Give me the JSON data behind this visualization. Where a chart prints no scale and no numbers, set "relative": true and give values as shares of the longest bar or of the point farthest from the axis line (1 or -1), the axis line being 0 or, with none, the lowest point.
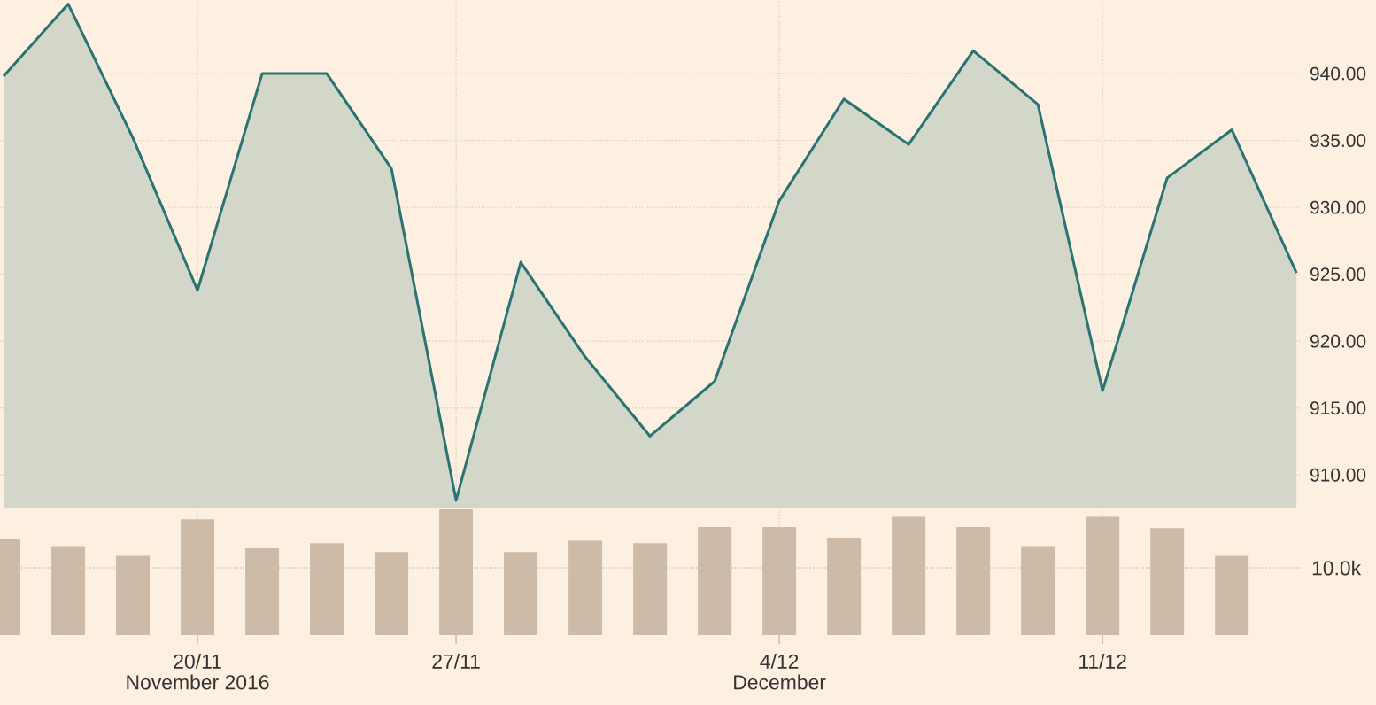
{
  "chart_data": [
    {
      "type": "area",
      "categories": [
        null,
        null,
        null,
        null,
        null,
        null,
        null,
        null,
        null,
        null,
        null,
        null,
        null,
        null,
        null,
        null,
        null,
        null,
        null,
        null,
        null
      ],
      "values": [
        939.8,
        945.2,
        935.2,
        923.8,
        940.0,
        940.0,
        932.9,
        908.1,
        925.9,
        918.8,
        912.9,
        917.0,
        930.5,
        938.1,
        934.7,
        941.7,
        937.7,
        916.3,
        932.2,
        935.8,
        925.1
      ],
      "color": "#2a7373",
      "ylim": [
        907.5,
        945.5
      ],
      "yticks": [
        {
          "value": 910,
          "label": "910.00"
        },
        {
          "value": 915,
          "label": "915.00"
        },
        {
          "value": 920,
          "label": "920.00"
        },
        {
          "value": 925,
          "label": "925.00"
        },
        {
          "value": 930,
          "label": "930.00"
        },
        {
          "value": 935,
          "label": "935.00"
        },
        {
          "value": 940,
          "label": "940.00"
        }
      ],
      "grid": true,
      "tick_labels": "y"
    },
    {
      "type": "bar",
      "categories": [
        null,
        null,
        null,
        "20/11",
        null,
        null,
        null,
        "27/11",
        null,
        null,
        null,
        null,
        "4/12",
        null,
        null,
        null,
        null,
        "11/12",
        null,
        null,
        null
      ],
      "values": [
        0.76,
        0.7,
        0.63,
        0.92,
        0.69,
        0.73,
        0.66,
        1,
        0.66,
        0.75,
        0.73,
        0.86,
        0.86,
        0.77,
        0.94,
        0.86,
        0.7,
        0.94,
        0.85,
        0.63,
        null
      ],
      "color": "#cdbba8",
      "relative": true,
      "grid": "x",
      "tick_labels": "x",
      "annotations": [
        "10.0k",
        "November 2016",
        "December"
      ]
    }
  ]
}
